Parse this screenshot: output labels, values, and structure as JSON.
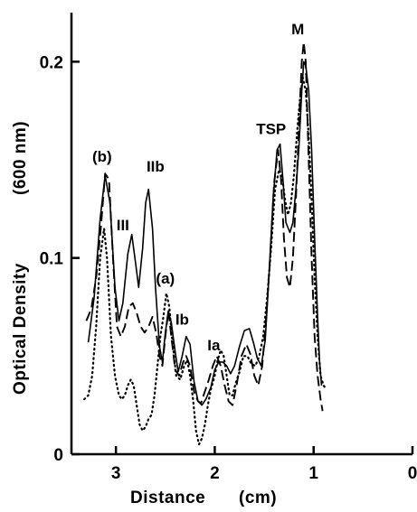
{
  "chart_data": {
    "type": "line",
    "title": "",
    "xlabel": "Distance",
    "xlabel_unit": "(cm)",
    "ylabel": "Optical Density",
    "ylabel_unit": "(600 nm)",
    "xlim": [
      3.45,
      0
    ],
    "ylim": [
      0,
      0.225
    ],
    "x_ticks": [
      {
        "value": 3,
        "label": "3"
      },
      {
        "value": 2,
        "label": "2"
      },
      {
        "value": 1,
        "label": "1"
      },
      {
        "value": 0,
        "label": "0"
      }
    ],
    "y_ticks": [
      {
        "value": 0,
        "label": "0"
      },
      {
        "value": 0.1,
        "label": "0.1"
      },
      {
        "value": 0.2,
        "label": "0.2"
      }
    ],
    "grid": false,
    "legend": "none",
    "series": [
      {
        "style": "solid",
        "points": [
          [
            3.28,
            0.057
          ],
          [
            3.22,
            0.08
          ],
          [
            3.16,
            0.12
          ],
          [
            3.11,
            0.142
          ],
          [
            3.06,
            0.128
          ],
          [
            3.01,
            0.085
          ],
          [
            2.97,
            0.068
          ],
          [
            2.93,
            0.077
          ],
          [
            2.88,
            0.102
          ],
          [
            2.84,
            0.112
          ],
          [
            2.8,
            0.097
          ],
          [
            2.77,
            0.085
          ],
          [
            2.73,
            0.105
          ],
          [
            2.7,
            0.128
          ],
          [
            2.67,
            0.135
          ],
          [
            2.63,
            0.115
          ],
          [
            2.6,
            0.085
          ],
          [
            2.56,
            0.055
          ],
          [
            2.53,
            0.047
          ],
          [
            2.5,
            0.062
          ],
          [
            2.47,
            0.073
          ],
          [
            2.44,
            0.067
          ],
          [
            2.4,
            0.052
          ],
          [
            2.37,
            0.042
          ],
          [
            2.33,
            0.05
          ],
          [
            2.29,
            0.06
          ],
          [
            2.25,
            0.056
          ],
          [
            2.21,
            0.037
          ],
          [
            2.17,
            0.027
          ],
          [
            2.13,
            0.025
          ],
          [
            2.09,
            0.028
          ],
          [
            2.04,
            0.034
          ],
          [
            2.0,
            0.043
          ],
          [
            1.96,
            0.047
          ],
          [
            1.92,
            0.047
          ],
          [
            1.88,
            0.045
          ],
          [
            1.84,
            0.041
          ],
          [
            1.8,
            0.045
          ],
          [
            1.75,
            0.055
          ],
          [
            1.7,
            0.063
          ],
          [
            1.65,
            0.064
          ],
          [
            1.61,
            0.057
          ],
          [
            1.57,
            0.049
          ],
          [
            1.53,
            0.045
          ],
          [
            1.49,
            0.058
          ],
          [
            1.45,
            0.093
          ],
          [
            1.41,
            0.13
          ],
          [
            1.37,
            0.155
          ],
          [
            1.34,
            0.158
          ],
          [
            1.31,
            0.14
          ],
          [
            1.28,
            0.118
          ],
          [
            1.24,
            0.113
          ],
          [
            1.21,
            0.118
          ],
          [
            1.18,
            0.135
          ],
          [
            1.15,
            0.155
          ],
          [
            1.12,
            0.185
          ],
          [
            1.1,
            0.2
          ],
          [
            1.08,
            0.198
          ],
          [
            1.05,
            0.185
          ],
          [
            1.02,
            0.155
          ],
          [
            0.99,
            0.11
          ],
          [
            0.96,
            0.07
          ],
          [
            0.94,
            0.047
          ],
          [
            0.92,
            0.035
          ]
        ]
      },
      {
        "style": "dashed",
        "points": [
          [
            3.3,
            0.068
          ],
          [
            3.25,
            0.074
          ],
          [
            3.2,
            0.09
          ],
          [
            3.15,
            0.117
          ],
          [
            3.11,
            0.143
          ],
          [
            3.07,
            0.14
          ],
          [
            3.03,
            0.1
          ],
          [
            2.99,
            0.065
          ],
          [
            2.95,
            0.06
          ],
          [
            2.91,
            0.065
          ],
          [
            2.87,
            0.075
          ],
          [
            2.83,
            0.077
          ],
          [
            2.79,
            0.072
          ],
          [
            2.75,
            0.065
          ],
          [
            2.71,
            0.062
          ],
          [
            2.67,
            0.065
          ],
          [
            2.63,
            0.07
          ],
          [
            2.59,
            0.061
          ],
          [
            2.56,
            0.05
          ],
          [
            2.53,
            0.045
          ],
          [
            2.5,
            0.06
          ],
          [
            2.47,
            0.073
          ],
          [
            2.44,
            0.06
          ],
          [
            2.4,
            0.043
          ],
          [
            2.36,
            0.04
          ],
          [
            2.32,
            0.047
          ],
          [
            2.29,
            0.05
          ],
          [
            2.25,
            0.045
          ],
          [
            2.21,
            0.032
          ],
          [
            2.17,
            0.027
          ],
          [
            2.14,
            0.026
          ],
          [
            2.1,
            0.032
          ],
          [
            2.06,
            0.038
          ],
          [
            2.02,
            0.045
          ],
          [
            1.98,
            0.05
          ],
          [
            1.94,
            0.045
          ],
          [
            1.9,
            0.035
          ],
          [
            1.86,
            0.027
          ],
          [
            1.82,
            0.025
          ],
          [
            1.78,
            0.035
          ],
          [
            1.73,
            0.05
          ],
          [
            1.68,
            0.056
          ],
          [
            1.64,
            0.051
          ],
          [
            1.6,
            0.04
          ],
          [
            1.56,
            0.035
          ],
          [
            1.52,
            0.045
          ],
          [
            1.48,
            0.07
          ],
          [
            1.44,
            0.1
          ],
          [
            1.4,
            0.138
          ],
          [
            1.36,
            0.155
          ],
          [
            1.33,
            0.14
          ],
          [
            1.3,
            0.11
          ],
          [
            1.27,
            0.09
          ],
          [
            1.24,
            0.085
          ],
          [
            1.21,
            0.1
          ],
          [
            1.18,
            0.13
          ],
          [
            1.15,
            0.165
          ],
          [
            1.12,
            0.2
          ],
          [
            1.1,
            0.21
          ],
          [
            1.08,
            0.2
          ],
          [
            1.05,
            0.15
          ],
          [
            1.02,
            0.1
          ],
          [
            0.99,
            0.06
          ],
          [
            0.96,
            0.04
          ],
          [
            0.93,
            0.028
          ],
          [
            0.91,
            0.022
          ]
        ]
      },
      {
        "style": "dotted",
        "points": [
          [
            3.32,
            0.028
          ],
          [
            3.28,
            0.03
          ],
          [
            3.24,
            0.04
          ],
          [
            3.2,
            0.065
          ],
          [
            3.16,
            0.1
          ],
          [
            3.12,
            0.115
          ],
          [
            3.09,
            0.1
          ],
          [
            3.05,
            0.06
          ],
          [
            3.01,
            0.04
          ],
          [
            2.97,
            0.03
          ],
          [
            2.94,
            0.028
          ],
          [
            2.91,
            0.03
          ],
          [
            2.88,
            0.035
          ],
          [
            2.85,
            0.038
          ],
          [
            2.82,
            0.035
          ],
          [
            2.79,
            0.025
          ],
          [
            2.76,
            0.015
          ],
          [
            2.73,
            0.012
          ],
          [
            2.7,
            0.014
          ],
          [
            2.67,
            0.018
          ],
          [
            2.64,
            0.02
          ],
          [
            2.61,
            0.03
          ],
          [
            2.58,
            0.045
          ],
          [
            2.55,
            0.06
          ],
          [
            2.52,
            0.07
          ],
          [
            2.49,
            0.082
          ],
          [
            2.46,
            0.075
          ],
          [
            2.43,
            0.058
          ],
          [
            2.39,
            0.04
          ],
          [
            2.35,
            0.038
          ],
          [
            2.31,
            0.045
          ],
          [
            2.28,
            0.048
          ],
          [
            2.25,
            0.04
          ],
          [
            2.22,
            0.028
          ],
          [
            2.19,
            0.012
          ],
          [
            2.16,
            0.005
          ],
          [
            2.13,
            0.008
          ],
          [
            2.1,
            0.015
          ],
          [
            2.07,
            0.025
          ],
          [
            2.04,
            0.033
          ],
          [
            2.0,
            0.04
          ],
          [
            1.97,
            0.048
          ],
          [
            1.94,
            0.053
          ],
          [
            1.91,
            0.05
          ],
          [
            1.88,
            0.04
          ],
          [
            1.85,
            0.03
          ],
          [
            1.82,
            0.03
          ],
          [
            1.79,
            0.036
          ],
          [
            1.75,
            0.042
          ],
          [
            1.71,
            0.05
          ],
          [
            1.67,
            0.05
          ],
          [
            1.63,
            0.046
          ],
          [
            1.59,
            0.045
          ],
          [
            1.55,
            0.05
          ],
          [
            1.51,
            0.06
          ],
          [
            1.47,
            0.08
          ],
          [
            1.43,
            0.105
          ],
          [
            1.39,
            0.135
          ],
          [
            1.35,
            0.145
          ],
          [
            1.32,
            0.142
          ],
          [
            1.29,
            0.13
          ],
          [
            1.26,
            0.122
          ],
          [
            1.23,
            0.128
          ],
          [
            1.2,
            0.142
          ],
          [
            1.17,
            0.162
          ],
          [
            1.14,
            0.18
          ],
          [
            1.11,
            0.192
          ],
          [
            1.08,
            0.185
          ],
          [
            1.05,
            0.162
          ],
          [
            1.02,
            0.13
          ],
          [
            0.99,
            0.09
          ],
          [
            0.96,
            0.06
          ],
          [
            0.93,
            0.04
          ],
          [
            0.9,
            0.035
          ],
          [
            0.87,
            0.033
          ]
        ]
      }
    ],
    "annotations": [
      {
        "text": "(b)",
        "x": 3.14,
        "y": 0.149
      },
      {
        "text": "III",
        "x": 2.93,
        "y": 0.114
      },
      {
        "text": "IIb",
        "x": 2.6,
        "y": 0.144
      },
      {
        "text": "(a)",
        "x": 2.5,
        "y": 0.087
      },
      {
        "text": "Ib",
        "x": 2.33,
        "y": 0.066
      },
      {
        "text": "Ia",
        "x": 2.01,
        "y": 0.053
      },
      {
        "text": "TSP",
        "x": 1.43,
        "y": 0.163
      },
      {
        "text": "M",
        "x": 1.16,
        "y": 0.214
      }
    ]
  }
}
